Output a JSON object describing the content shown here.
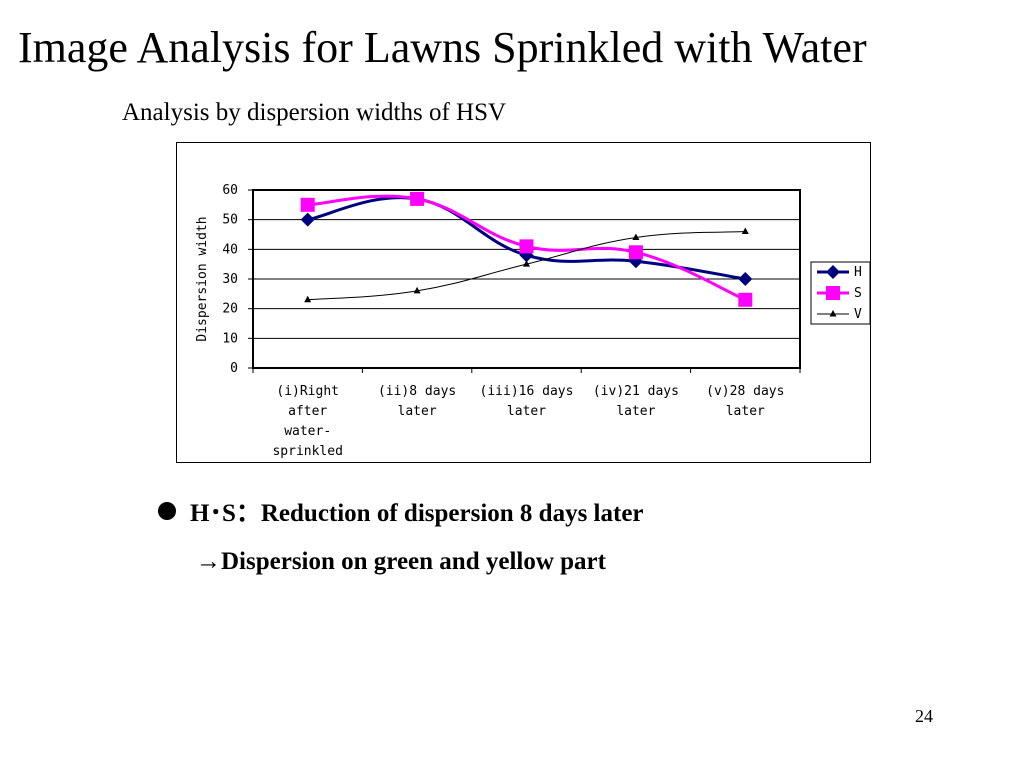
{
  "slide": {
    "title": "Image Analysis for Lawns Sprinkled with Water",
    "subtitle": "Analysis by dispersion widths of HSV",
    "bullets": [
      {
        "prefix": "H･S：",
        "text": "Reduction of dispersion 8 days later"
      },
      {
        "prefix": "",
        "text": "→Dispersion on green and yellow part"
      }
    ],
    "page_number": "24"
  },
  "chart_data": {
    "type": "line",
    "ylabel": "Dispersion width",
    "xlabel": "",
    "ylim": [
      0,
      60
    ],
    "yticks": [
      0,
      10,
      20,
      30,
      40,
      50,
      60
    ],
    "grid": true,
    "legend_position": "right",
    "categories": [
      [
        "(i)Right",
        "after",
        "water-",
        "sprinkled"
      ],
      [
        "(ii)8 days",
        "later"
      ],
      [
        "(iii)16 days",
        "later"
      ],
      [
        "(iv)21 days",
        "later"
      ],
      [
        "(v)28 days",
        "later"
      ]
    ],
    "series": [
      {
        "name": "H",
        "values": [
          50,
          57,
          38,
          36,
          30
        ],
        "color": "#000080",
        "marker": "diamond"
      },
      {
        "name": "S",
        "values": [
          55,
          57,
          41,
          39,
          23
        ],
        "color": "#ff00ff",
        "marker": "square"
      },
      {
        "name": "V",
        "values": [
          23,
          26,
          35,
          44,
          46
        ],
        "color": "#000000",
        "marker": "triangle"
      }
    ]
  }
}
